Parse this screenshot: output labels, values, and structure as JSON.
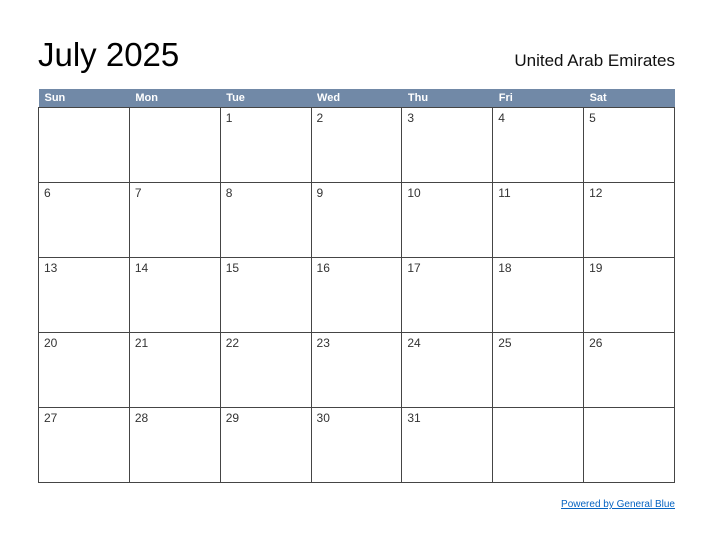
{
  "page": {
    "title": "July 2025",
    "subtitle": "United Arab Emirates",
    "footer_link": "Powered by General Blue"
  },
  "calendar": {
    "weekdays": [
      "Sun",
      "Mon",
      "Tue",
      "Wed",
      "Thu",
      "Fri",
      "Sat"
    ],
    "weeks": [
      [
        "",
        "",
        "1",
        "2",
        "3",
        "4",
        "5"
      ],
      [
        "6",
        "7",
        "8",
        "9",
        "10",
        "11",
        "12"
      ],
      [
        "13",
        "14",
        "15",
        "16",
        "17",
        "18",
        "19"
      ],
      [
        "20",
        "21",
        "22",
        "23",
        "24",
        "25",
        "26"
      ],
      [
        "27",
        "28",
        "29",
        "30",
        "31",
        "",
        ""
      ]
    ]
  },
  "colors": {
    "header_bg": "#7189a7",
    "border": "#454545",
    "link": "#0563c1"
  }
}
